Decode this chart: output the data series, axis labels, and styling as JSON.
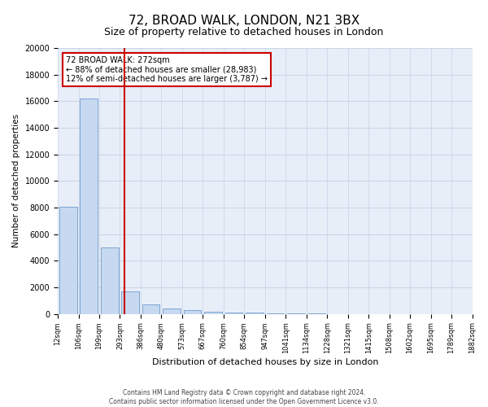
{
  "title1": "72, BROAD WALK, LONDON, N21 3BX",
  "title2": "Size of property relative to detached houses in London",
  "xlabel": "Distribution of detached houses by size in London",
  "ylabel": "Number of detached properties",
  "annotation_line1": "72 BROAD WALK: 272sqm",
  "annotation_line2": "← 88% of detached houses are smaller (28,983)",
  "annotation_line3": "12% of semi-detached houses are larger (3,787) →",
  "footer1": "Contains HM Land Registry data © Crown copyright and database right 2024.",
  "footer2": "Contains public sector information licensed under the Open Government Licence v3.0.",
  "bar_labels": [
    "12sqm",
    "106sqm",
    "199sqm",
    "293sqm",
    "386sqm",
    "480sqm",
    "573sqm",
    "667sqm",
    "760sqm",
    "854sqm",
    "947sqm",
    "1041sqm",
    "1134sqm",
    "1228sqm",
    "1321sqm",
    "1415sqm",
    "1508sqm",
    "1602sqm",
    "1695sqm",
    "1789sqm",
    "1882sqm"
  ],
  "bar_heights": [
    8050,
    16200,
    5000,
    1700,
    700,
    420,
    270,
    180,
    120,
    70,
    30,
    15,
    8,
    5,
    3,
    2,
    1,
    1,
    0,
    0
  ],
  "bar_color": "#c6d9f0",
  "bar_edge_color": "#5a8ac6",
  "vline_color": "#cc0000",
  "vline_position": 2.73,
  "ylim": [
    0,
    20000
  ],
  "yticks": [
    0,
    2000,
    4000,
    6000,
    8000,
    10000,
    12000,
    14000,
    16000,
    18000,
    20000
  ],
  "grid_color": "#c8d4e8",
  "bg_color": "#e8eef8",
  "annotation_box_color": "#cc0000",
  "title1_fontsize": 11,
  "title2_fontsize": 9
}
